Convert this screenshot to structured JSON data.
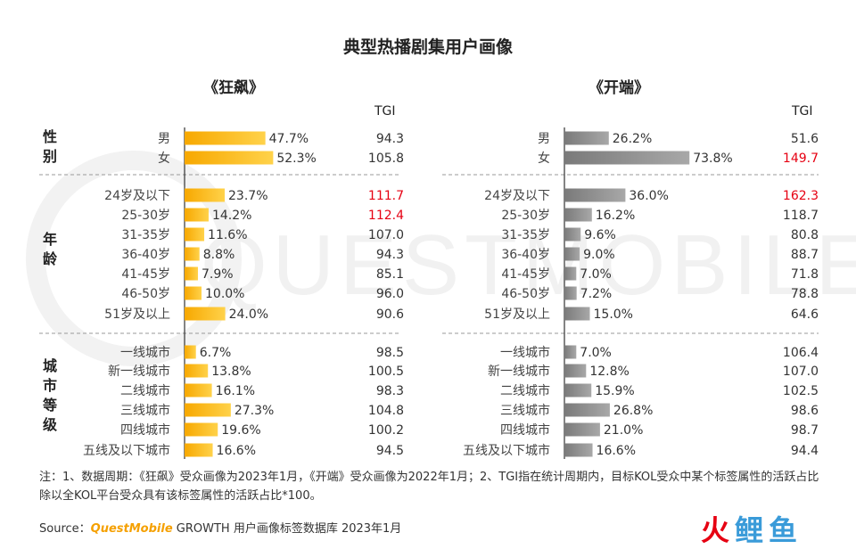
{
  "page": {
    "title": "典型热播剧集用户画像",
    "note": "注：1、数据周期：《狂飙》受众画像为2023年1月，《开端》受众画像为2022年1月；2、TGI指在统计周期内，目标KOL受众中某个标签属性的活跃占比除以全KOL平台受众具有该标签属性的活跃占比*100。",
    "source_prefix": "Source：",
    "source_brand": "QuestMobile",
    "source_rest": " GROWTH 用户画像标签数据库 2023年1月",
    "watermark": "QUESTMOBILE",
    "logo_text": "火鲤鱼"
  },
  "groups": [
    {
      "label": "性别",
      "chars": [
        "性",
        "别"
      ]
    },
    {
      "label": "年龄",
      "chars": [
        "年",
        "龄"
      ]
    },
    {
      "label": "城市等级",
      "chars": [
        "城",
        "市",
        "等",
        "级"
      ]
    }
  ],
  "tgi_header": "TGI",
  "colors": {
    "left_bar": "#f7b500",
    "right_bar": "#8c8c8c",
    "highlight": "#e60012",
    "text": "#333333"
  },
  "chart_data": [
    {
      "type": "bar",
      "title": "《狂飙》",
      "categories": [
        "男",
        "女",
        "24岁及以下",
        "25-30岁",
        "31-35岁",
        "36-40岁",
        "41-45岁",
        "46-50岁",
        "51岁及以上",
        "一线城市",
        "新一线城市",
        "二线城市",
        "三线城市",
        "四线城市",
        "五线及以下城市"
      ],
      "values": [
        47.7,
        52.3,
        23.7,
        14.2,
        11.6,
        8.8,
        7.9,
        10.0,
        24.0,
        6.7,
        13.8,
        16.1,
        27.3,
        19.6,
        16.6
      ],
      "value_labels": [
        "47.7%",
        "52.3%",
        "23.7%",
        "14.2%",
        "11.6%",
        "8.8%",
        "7.9%",
        "10.0%",
        "24.0%",
        "6.7%",
        "13.8%",
        "16.1%",
        "27.3%",
        "19.6%",
        "16.6%"
      ],
      "tgi": [
        "94.3",
        "105.8",
        "111.7",
        "112.4",
        "107.0",
        "94.3",
        "85.1",
        "96.0",
        "90.6",
        "98.5",
        "100.5",
        "98.3",
        "104.8",
        "100.2",
        "94.5"
      ],
      "tgi_highlight": [
        false,
        false,
        true,
        true,
        false,
        false,
        false,
        false,
        false,
        false,
        false,
        false,
        false,
        false,
        false
      ],
      "orientation": "horizontal"
    },
    {
      "type": "bar",
      "title": "《开端》",
      "categories": [
        "男",
        "女",
        "24岁及以下",
        "25-30岁",
        "31-35岁",
        "36-40岁",
        "41-45岁",
        "46-50岁",
        "51岁及以上",
        "一线城市",
        "新一线城市",
        "二线城市",
        "三线城市",
        "四线城市",
        "五线及以下城市"
      ],
      "values": [
        26.2,
        73.8,
        36.0,
        16.2,
        9.6,
        9.0,
        7.0,
        7.2,
        15.0,
        7.0,
        12.8,
        15.9,
        26.8,
        21.0,
        16.6
      ],
      "value_labels": [
        "26.2%",
        "73.8%",
        "36.0%",
        "16.2%",
        "9.6%",
        "9.0%",
        "7.0%",
        "7.2%",
        "15.0%",
        "7.0%",
        "12.8%",
        "15.9%",
        "26.8%",
        "21.0%",
        "16.6%"
      ],
      "tgi": [
        "51.6",
        "149.7",
        "162.3",
        "118.7",
        "80.8",
        "88.7",
        "71.8",
        "78.8",
        "64.6",
        "106.4",
        "107.0",
        "102.5",
        "98.6",
        "98.7",
        "94.4"
      ],
      "tgi_highlight": [
        false,
        true,
        true,
        false,
        false,
        false,
        false,
        false,
        false,
        false,
        false,
        false,
        false,
        false,
        false
      ],
      "orientation": "horizontal"
    }
  ]
}
